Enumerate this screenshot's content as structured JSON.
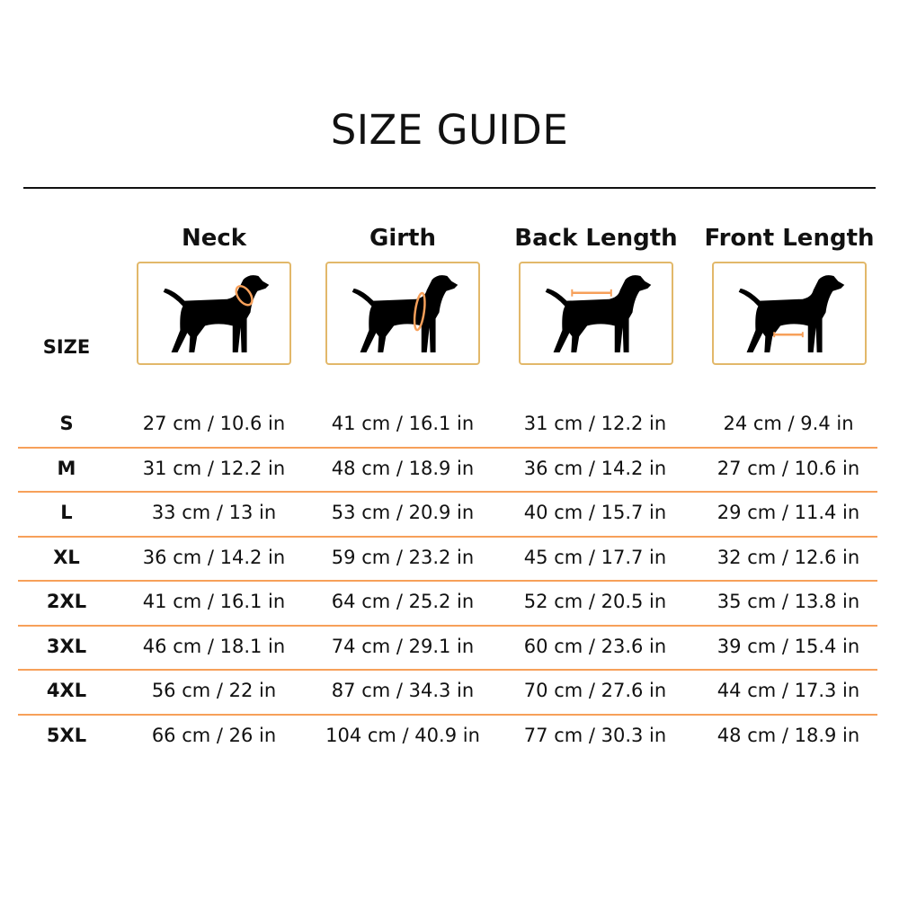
{
  "title": "SIZE GUIDE",
  "size_label": "SIZE",
  "accent_color": "#f7a05a",
  "card_border_color": "#e2b86a",
  "columns": [
    {
      "label": "Neck",
      "icon": "dog-neck-measure-icon"
    },
    {
      "label": "Girth",
      "icon": "dog-girth-measure-icon"
    },
    {
      "label": "Back Length",
      "icon": "dog-back-length-measure-icon"
    },
    {
      "label": "Front Length",
      "icon": "dog-front-length-measure-icon"
    }
  ],
  "rows": [
    {
      "size": "S",
      "values": [
        "27 cm / 10.6 in",
        "41 cm / 16.1 in",
        "31 cm / 12.2 in",
        "24 cm / 9.4 in"
      ]
    },
    {
      "size": "M",
      "values": [
        "31 cm / 12.2 in",
        "48 cm / 18.9 in",
        "36 cm / 14.2 in",
        "27 cm / 10.6 in"
      ]
    },
    {
      "size": "L",
      "values": [
        "33 cm / 13 in",
        "53 cm / 20.9 in",
        "40 cm / 15.7 in",
        "29 cm / 11.4 in"
      ]
    },
    {
      "size": "XL",
      "values": [
        "36 cm / 14.2 in",
        "59 cm / 23.2 in",
        "45 cm / 17.7 in",
        "32 cm / 12.6 in"
      ]
    },
    {
      "size": "2XL",
      "values": [
        "41 cm / 16.1 in",
        "64 cm / 25.2 in",
        "52 cm / 20.5 in",
        "35 cm / 13.8 in"
      ]
    },
    {
      "size": "3XL",
      "values": [
        "46 cm / 18.1 in",
        "74 cm / 29.1 in",
        "60 cm / 23.6 in",
        "39 cm / 15.4 in"
      ]
    },
    {
      "size": "4XL",
      "values": [
        "56 cm / 22 in",
        "87 cm / 34.3 in",
        "70 cm / 27.6 in",
        "44 cm / 17.3 in"
      ]
    },
    {
      "size": "5XL",
      "values": [
        "66 cm / 26 in",
        "104 cm / 40.9 in",
        "77 cm / 30.3 in",
        "48 cm / 18.9 in"
      ]
    }
  ]
}
